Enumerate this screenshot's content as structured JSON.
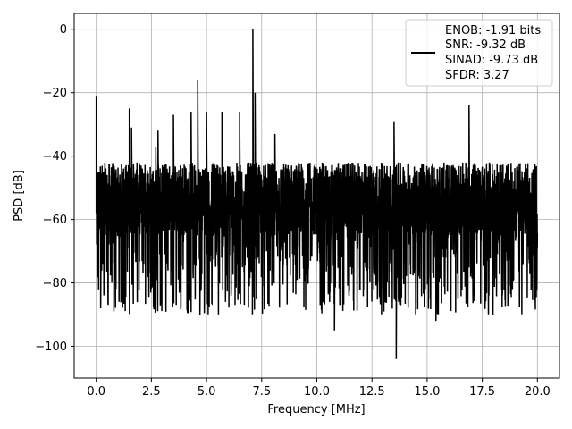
{
  "chart_data": {
    "type": "line",
    "title": "",
    "xlabel": "Frequency [MHz]",
    "ylabel": "PSD [dB]",
    "xlim": [
      -1,
      21.0
    ],
    "ylim": [
      -110,
      5
    ],
    "xticks": [
      0.0,
      2.5,
      5.0,
      7.5,
      10.0,
      12.5,
      15.0,
      17.5,
      20.0
    ],
    "xtick_labels": [
      "0.0",
      "2.5",
      "5.0",
      "7.5",
      "10.0",
      "12.5",
      "15.0",
      "17.5",
      "20.0"
    ],
    "yticks": [
      0,
      -20,
      -40,
      -60,
      -80,
      -100
    ],
    "ytick_labels": [
      "0",
      "−20",
      "−40",
      "−60",
      "−80",
      "−100"
    ],
    "grid": true,
    "legend_position": "top-right",
    "legend_lines": [
      "ENOB: -1.91 bits",
      "SNR: -9.32 dB",
      "SINAD: -9.73 dB",
      "SFDR: 3.27"
    ],
    "series_color": "#000000",
    "series": {
      "x_start": 0.0,
      "x_end": 20.0,
      "noise_floor_range": [
        -65,
        -42
      ],
      "noise_deep_range": [
        -90,
        -65
      ],
      "peaks": [
        {
          "x": 0.0,
          "y": -21
        },
        {
          "x": 1.5,
          "y": -25
        },
        {
          "x": 1.6,
          "y": -31
        },
        {
          "x": 2.7,
          "y": -37
        },
        {
          "x": 2.8,
          "y": -32
        },
        {
          "x": 3.5,
          "y": -27
        },
        {
          "x": 4.3,
          "y": -26
        },
        {
          "x": 4.6,
          "y": -16
        },
        {
          "x": 5.0,
          "y": -26
        },
        {
          "x": 5.7,
          "y": -26
        },
        {
          "x": 6.5,
          "y": -26
        },
        {
          "x": 7.1,
          "y": 0
        },
        {
          "x": 7.2,
          "y": -20
        },
        {
          "x": 8.1,
          "y": -33
        },
        {
          "x": 13.5,
          "y": -29
        },
        {
          "x": 16.9,
          "y": -24
        }
      ],
      "dips": [
        {
          "x": 0.2,
          "y": -88
        },
        {
          "x": 0.8,
          "y": -89
        },
        {
          "x": 4.7,
          "y": -90
        },
        {
          "x": 10.8,
          "y": -95
        },
        {
          "x": 13.6,
          "y": -104
        },
        {
          "x": 15.4,
          "y": -92
        }
      ]
    }
  }
}
